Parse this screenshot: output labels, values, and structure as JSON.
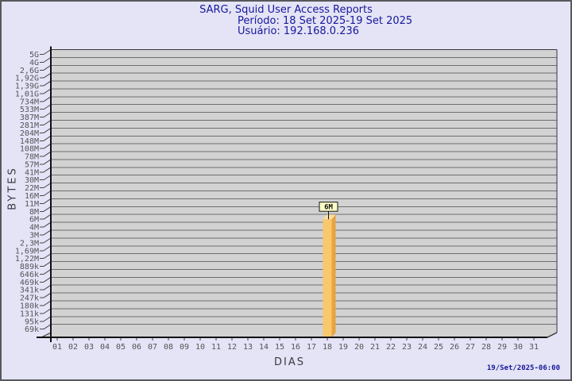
{
  "header": {
    "title": "SARG, Squid User Access Reports",
    "period": "Período: 18 Set 2025-19 Set 2025",
    "user": "Usuário: 192.168.0.236"
  },
  "footer": {
    "timestamp": "19/Set/2025-06:00"
  },
  "chart_data": {
    "type": "bar",
    "title": "SARG, Squid User Access Reports",
    "subtitle": "Período: 18 Set 2025-19 Set 2025 / Usuário: 192.168.0.236",
    "xlabel": "DIAS",
    "ylabel": "BYTES",
    "grid": "horizontal-only",
    "legend": "none",
    "y_scale": "non-linear tick ladder as labeled",
    "y_tick_labels": [
      "5G",
      "4G",
      "2,6G",
      "1,92G",
      "1,39G",
      "1,01G",
      "734M",
      "533M",
      "387M",
      "281M",
      "204M",
      "148M",
      "108M",
      "78M",
      "57M",
      "41M",
      "30M",
      "22M",
      "16M",
      "11M",
      "8M",
      "6M",
      "4M",
      "3M",
      "2,3M",
      "1,69M",
      "1,22M",
      "889k",
      "646k",
      "469k",
      "341k",
      "247k",
      "180k",
      "131k",
      "95k",
      "69k"
    ],
    "categories": [
      "01",
      "02",
      "03",
      "04",
      "05",
      "06",
      "07",
      "08",
      "09",
      "10",
      "11",
      "12",
      "13",
      "14",
      "15",
      "16",
      "17",
      "18",
      "19",
      "20",
      "21",
      "22",
      "23",
      "24",
      "25",
      "26",
      "27",
      "28",
      "29",
      "30",
      "31"
    ],
    "bars": [
      {
        "day": "18",
        "value_label": "6M",
        "approx_value_bytes": 6000000
      }
    ],
    "colors": {
      "page_bg": "#e4e4f6",
      "page_border": "#58585c",
      "plot_bg": "#d2d2d2",
      "gridline": "#6e6e6e",
      "plot_border": "#38383c",
      "axis": "#101012",
      "tick": "#46464c",
      "tick_text": "#54545a",
      "title_navy": "#17179c",
      "bar_front": "#f9c76c",
      "bar_side": "#e6a440",
      "bar_top": "#fbdfa2",
      "value_box_bg": "#ffffc8",
      "value_box_border": "#111111"
    }
  }
}
